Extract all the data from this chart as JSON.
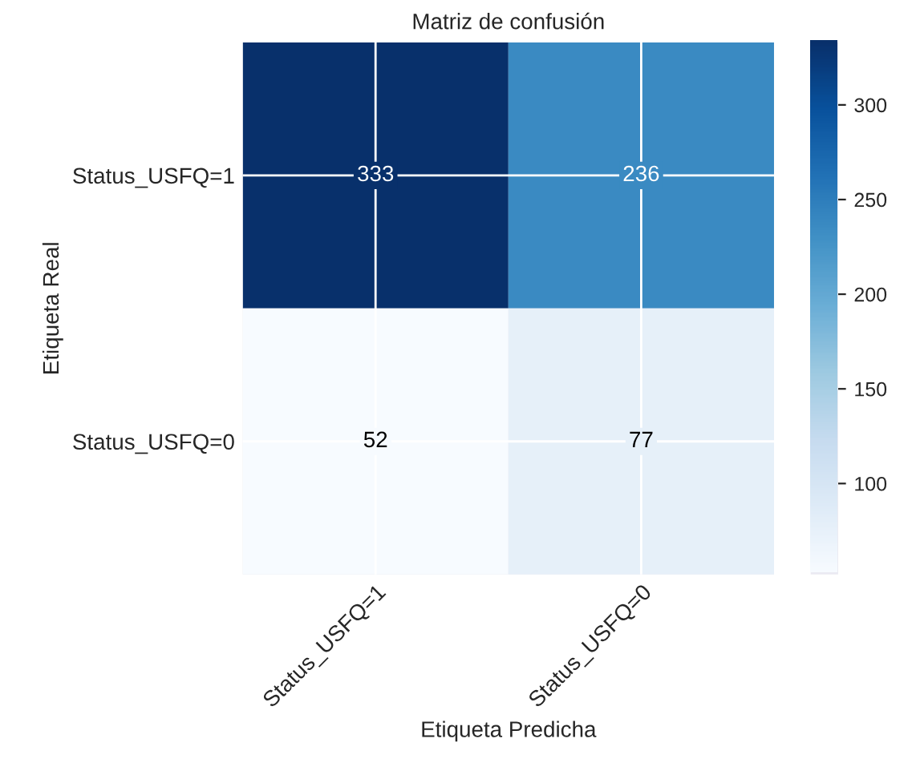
{
  "chart_data": {
    "type": "heatmap",
    "title": "Matriz de confusión",
    "xlabel": "Etiqueta Predicha",
    "ylabel": "Etiqueta Real",
    "categories": [
      "Status_USFQ=1",
      "Status_USFQ=0"
    ],
    "y_categories": [
      "Status_USFQ=1",
      "Status_USFQ=0"
    ],
    "cells": [
      [
        333,
        236
      ],
      [
        52,
        77
      ]
    ],
    "clim": [
      52,
      333
    ],
    "cticks": [
      100,
      150,
      200,
      250,
      300
    ],
    "data_labels": true,
    "grid": true
  }
}
